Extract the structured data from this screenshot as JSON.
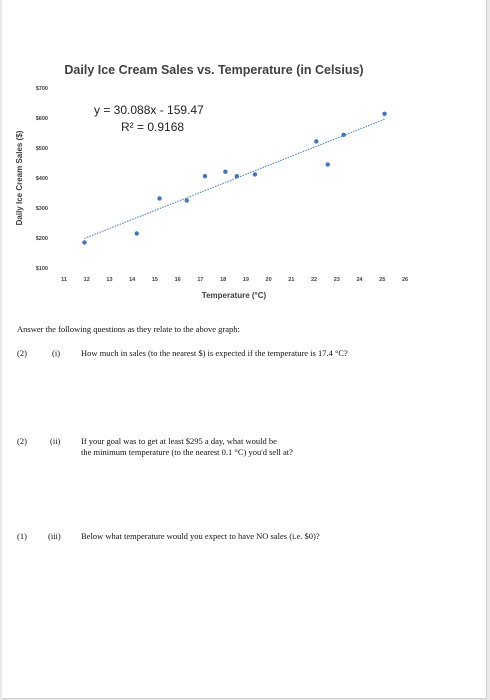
{
  "chart_data": {
    "type": "scatter",
    "title": "Daily Ice Cream Sales vs. Temperature (in Celsius)",
    "xlabel": "Temperature (°C)",
    "ylabel": "Daily Ice Cream Sales ($)",
    "xlim": [
      11,
      26
    ],
    "ylim": [
      100,
      700
    ],
    "x_ticks": [
      "11",
      "12",
      "13",
      "14",
      "15",
      "16",
      "17",
      "18",
      "19",
      "20",
      "21",
      "22",
      "23",
      "24",
      "25",
      "26"
    ],
    "y_ticks": [
      "$100",
      "$200",
      "$300",
      "$400",
      "$500",
      "$600",
      "$700"
    ],
    "points": [
      {
        "x": 11.9,
        "y": 185
      },
      {
        "x": 14.2,
        "y": 215
      },
      {
        "x": 15.2,
        "y": 332
      },
      {
        "x": 16.4,
        "y": 325
      },
      {
        "x": 17.2,
        "y": 406
      },
      {
        "x": 18.1,
        "y": 421
      },
      {
        "x": 18.6,
        "y": 406
      },
      {
        "x": 19.4,
        "y": 412
      },
      {
        "x": 22.1,
        "y": 522
      },
      {
        "x": 22.6,
        "y": 445
      },
      {
        "x": 23.3,
        "y": 544
      },
      {
        "x": 25.1,
        "y": 614
      }
    ],
    "trendline": {
      "slope": 30.088,
      "intercept": -159.47,
      "x_range": [
        11.9,
        25.1
      ]
    },
    "annotations": {
      "equation": "y = 30.088x - 159.47",
      "r_squared": "R² = 0.9168"
    },
    "grid": false,
    "marker_color": "#4472C4"
  },
  "questions": {
    "intro": "Answer the following questions as they relate to the above graph:",
    "items": [
      {
        "points": "(2)",
        "num": "(i)",
        "text": "How much in sales (to the nearest $) is expected if the temperature is 17.4 °C?"
      },
      {
        "points": "(2)",
        "num": "(ii)",
        "text": "If your goal was to get at least $295 a day, what would be",
        "text2": "the minimum temperature (to the nearest 0.1 °C) you'd sell at?"
      },
      {
        "points": "(1)",
        "num": "(iii)",
        "text": "Below what temperature would you expect to have NO sales (i.e. $0)?"
      }
    ]
  }
}
